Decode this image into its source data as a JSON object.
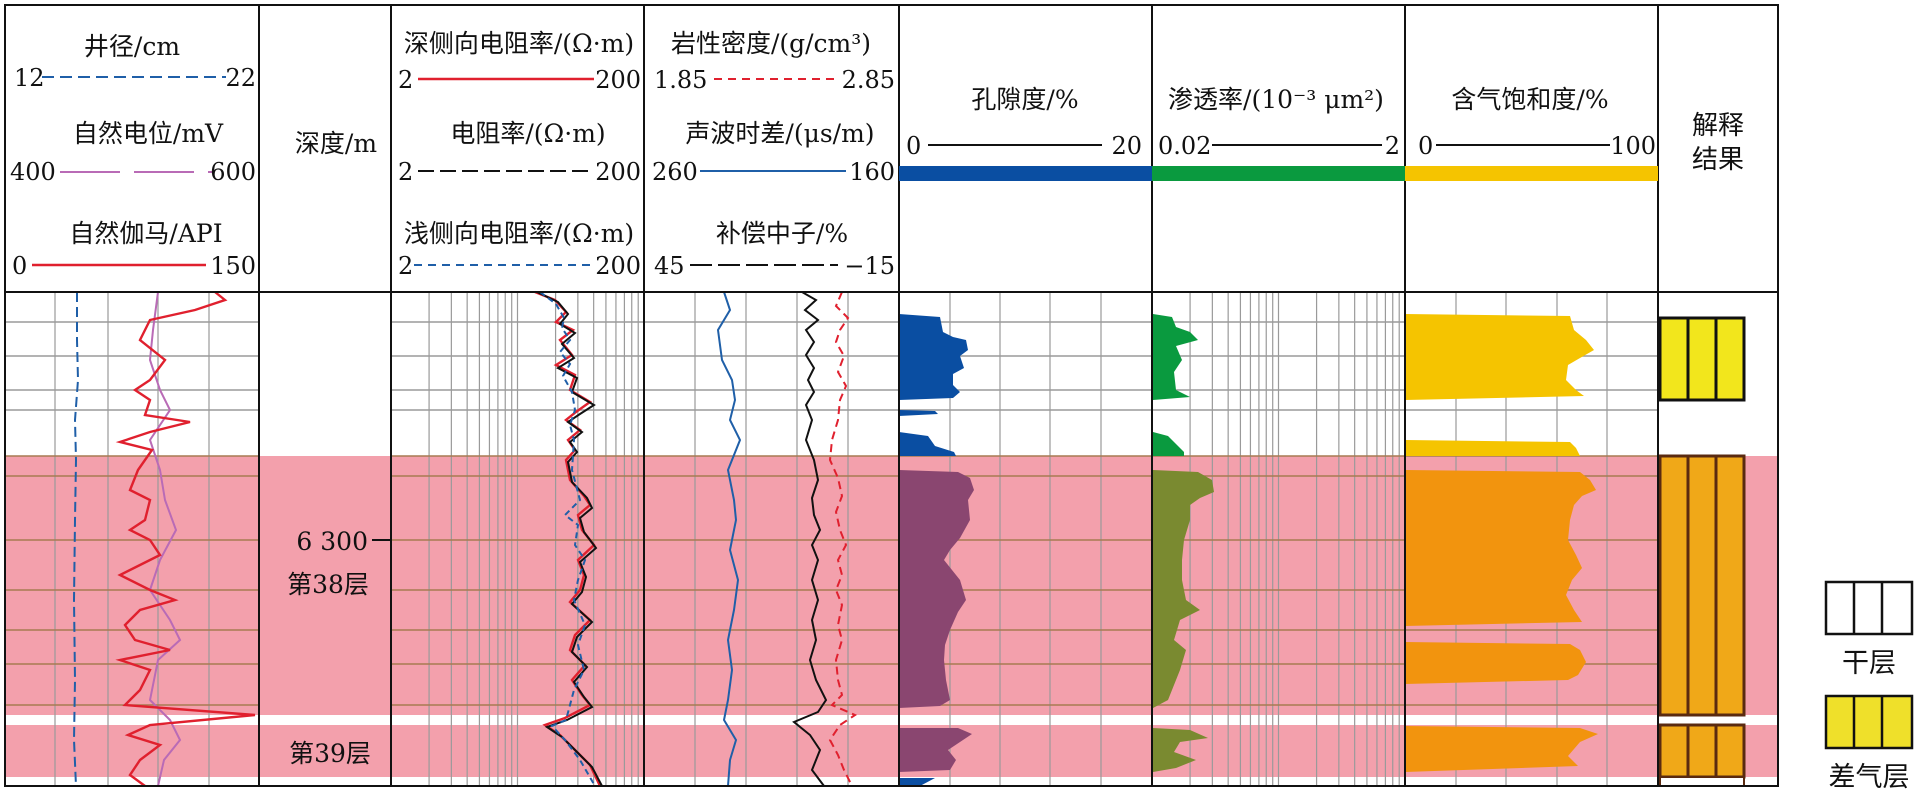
{
  "tracks": [
    {
      "id": "t1",
      "curves": [
        {
          "label": "井径/cm",
          "left": "12",
          "right": "22",
          "color": "#1f5fa8",
          "dash": "12,6"
        },
        {
          "label": "自然电位/mV",
          "left": "400",
          "right": "600",
          "color": "#b96bb6",
          "dash": "60,14"
        },
        {
          "label": "自然伽马/API",
          "left": "0",
          "right": "150",
          "color": "#e0202e",
          "dash": ""
        }
      ]
    },
    {
      "id": "depth",
      "title": "深度/m",
      "tick_label": "6 300",
      "layer_labels": [
        "第38层",
        "第39层"
      ]
    },
    {
      "id": "t3",
      "curves": [
        {
          "label": "深侧向电阻率/(Ω·m)",
          "left": "2",
          "right": "200",
          "color": "#e0202e",
          "dash": ""
        },
        {
          "label": "电阻率/(Ω·m)",
          "left": "2",
          "right": "200",
          "color": "#111111",
          "dash": "16,6"
        },
        {
          "label": "浅侧向电阻率/(Ω·m)",
          "left": "2",
          "right": "200",
          "color": "#1f5fa8",
          "dash": "8,6"
        }
      ]
    },
    {
      "id": "t4",
      "curves": [
        {
          "label": "岩性密度/(g/cm³)",
          "left": "1.85",
          "right": "2.85",
          "color": "#e0202e",
          "dash": "8,6"
        },
        {
          "label": "声波时差/(μs/m)",
          "left": "260",
          "right": "160",
          "color": "#1f5fa8",
          "dash": ""
        },
        {
          "label": "补偿中子/%",
          "left": "45",
          "right": "−15",
          "color": "#111111",
          "dash": "22,6"
        }
      ]
    },
    {
      "id": "t5",
      "title": "孔隙度/%",
      "left": "0",
      "right": "20",
      "bar_color": "#0a4ea2"
    },
    {
      "id": "t6",
      "title": "渗透率/(10⁻³ μm²)",
      "left": "0.02",
      "right": "2",
      "bar_color": "#0a9a3f"
    },
    {
      "id": "t7",
      "title": "含气饱和度/%",
      "left": "0",
      "right": "100",
      "bar_color": "#f5c400"
    },
    {
      "id": "t8",
      "title": "解释结果"
    }
  ],
  "legend": [
    {
      "label": "干层",
      "fill": "#ffffff"
    },
    {
      "label": "差气层",
      "fill": "#efe02a"
    }
  ],
  "colors": {
    "pay_zone": "#f3a0ac",
    "porosity_in_zone": "#8a4670",
    "permeability_in_zone": "#7a8a30",
    "saturation_in_zone": "#f2940e",
    "interp_zone": "#f0a818",
    "interp_dry": "#f2e61c",
    "grid_white": "#9a9a9a",
    "grid_pink": "#a77a52"
  }
}
